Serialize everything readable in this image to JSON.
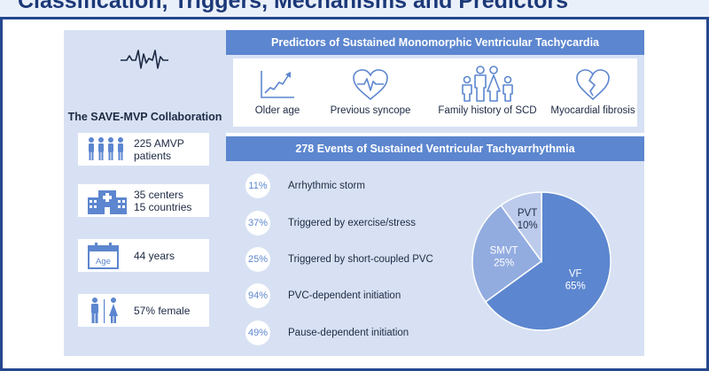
{
  "header": {
    "title": "Classification, Triggers, Mechanisms and Predictors"
  },
  "collab": {
    "title": "The SAVE-MVP Collaboration"
  },
  "stats": [
    {
      "icon": "people-group-icon",
      "line1": "225 AMVP",
      "line2": "patients"
    },
    {
      "icon": "hospital-icon",
      "line1": "35 centers",
      "line2": "15 countries"
    },
    {
      "icon": "calendar-age-icon",
      "line1": "44 years",
      "line2": "",
      "badge": "Age"
    },
    {
      "icon": "male-female-icon",
      "line1": "57% female",
      "line2": ""
    }
  ],
  "predictors": {
    "heading": "Predictors of Sustained Monomorphic Ventricular Tachycardia",
    "items": [
      {
        "icon": "trend-up-icon",
        "label": "Older age"
      },
      {
        "icon": "heart-pulse-icon",
        "label": "Previous syncope"
      },
      {
        "icon": "family-icon",
        "label": "Family history of SCD"
      },
      {
        "icon": "broken-heart-icon",
        "label": "Myocardial fibrosis"
      }
    ]
  },
  "events": {
    "heading": "278 Events of Sustained Ventricular Tachyarrhythmia",
    "items": [
      {
        "pct": "11%",
        "label": "Arrhythmic storm"
      },
      {
        "pct": "37%",
        "label": "Triggered by exercise/stress"
      },
      {
        "pct": "25%",
        "label": "Triggered by short-coupled PVC"
      },
      {
        "pct": "94%",
        "label": "PVC-dependent initiation"
      },
      {
        "pct": "49%",
        "label": "Pause-dependent initiation"
      }
    ]
  },
  "chart_data": {
    "type": "pie",
    "categories": [
      "VF",
      "SMVT",
      "PVT"
    ],
    "values": [
      65,
      25,
      10
    ],
    "labels": [
      "65%",
      "25%",
      "10%"
    ],
    "colors": [
      "#5c86cf",
      "#92ace0",
      "#bccbec"
    ]
  }
}
